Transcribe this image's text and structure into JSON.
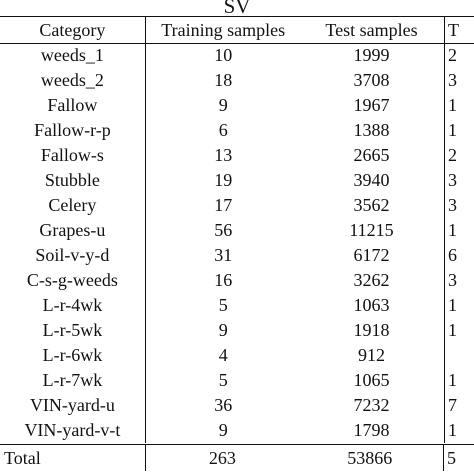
{
  "table": {
    "group_label": "SV",
    "columns": {
      "category": "Category",
      "training": "Training samples",
      "test": "Test samples",
      "cut": "T"
    },
    "rows": [
      {
        "category": "weeds_1",
        "training": "10",
        "test": "1999",
        "cut": "2"
      },
      {
        "category": "weeds_2",
        "training": "18",
        "test": "3708",
        "cut": "3"
      },
      {
        "category": "Fallow",
        "training": "9",
        "test": "1967",
        "cut": "1"
      },
      {
        "category": "Fallow-r-p",
        "training": "6",
        "test": "1388",
        "cut": "1"
      },
      {
        "category": "Fallow-s",
        "training": "13",
        "test": "2665",
        "cut": "2"
      },
      {
        "category": "Stubble",
        "training": "19",
        "test": "3940",
        "cut": "3"
      },
      {
        "category": "Celery",
        "training": "17",
        "test": "3562",
        "cut": "3"
      },
      {
        "category": "Grapes-u",
        "training": "56",
        "test": "11215",
        "cut": "1"
      },
      {
        "category": "Soil-v-y-d",
        "training": "31",
        "test": "6172",
        "cut": "6"
      },
      {
        "category": "C-s-g-weeds",
        "training": "16",
        "test": "3262",
        "cut": "3"
      },
      {
        "category": "L-r-4wk",
        "training": "5",
        "test": "1063",
        "cut": "1"
      },
      {
        "category": "L-r-5wk",
        "training": "9",
        "test": "1918",
        "cut": "1"
      },
      {
        "category": "L-r-6wk",
        "training": "4",
        "test": "912",
        "cut": ""
      },
      {
        "category": "L-r-7wk",
        "training": "5",
        "test": "1065",
        "cut": "1"
      },
      {
        "category": "VIN-yard-u",
        "training": "36",
        "test": "7232",
        "cut": "7"
      },
      {
        "category": "VIN-yard-v-t",
        "training": "9",
        "test": "1798",
        "cut": "1"
      }
    ],
    "total": {
      "label": "Total",
      "training": "263",
      "test": "53866",
      "cut": "5"
    }
  }
}
